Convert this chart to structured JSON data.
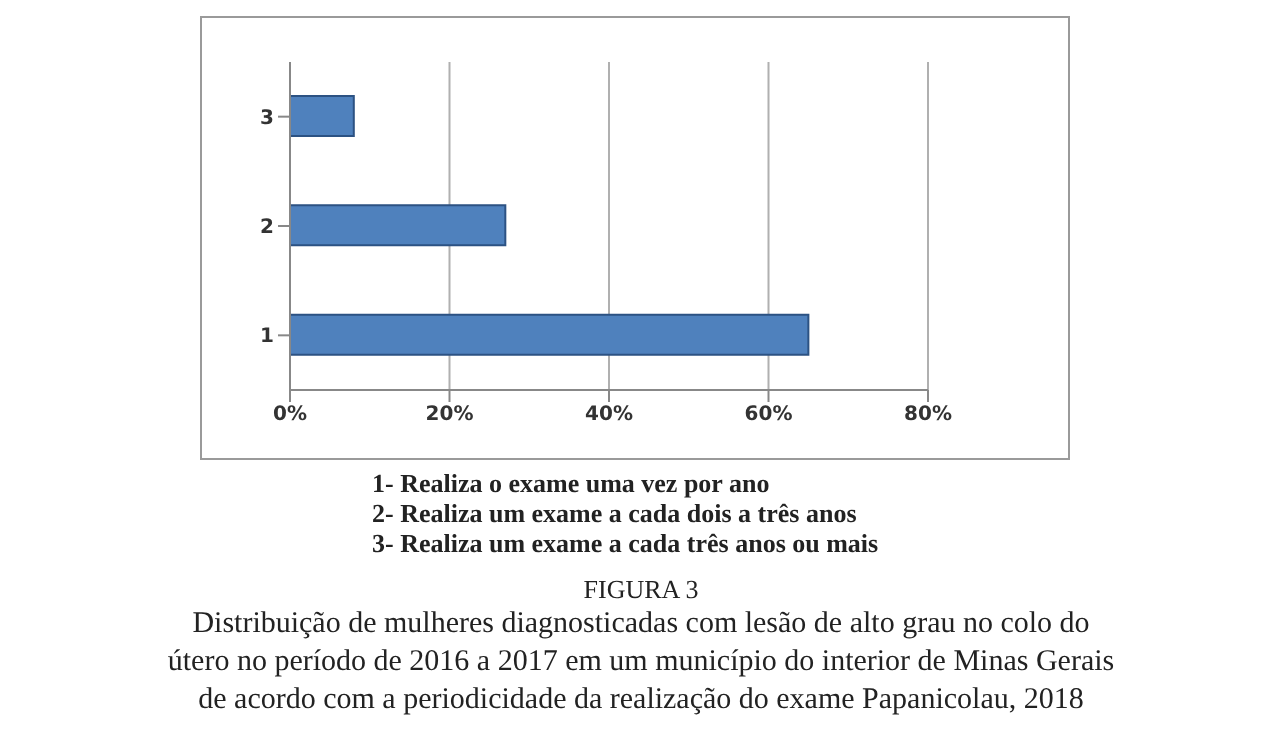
{
  "chart_data": {
    "type": "bar",
    "orientation": "horizontal",
    "title": "FIGURA 3",
    "subtitle": "Distribuição de mulheres diagnosticadas com lesão de alto grau no colo do útero no período de 2016 a 2017 em um município do interior de Minas Gerais de acordo com a periodicidade da realização do exame Papanicolau, 2018",
    "categories": [
      "3",
      "2",
      "1"
    ],
    "values": [
      8,
      27,
      65
    ],
    "color": "#4f81bd",
    "xlim": [
      0,
      80
    ],
    "xticks": [
      {
        "value": 0,
        "label": "0%"
      },
      {
        "value": 20,
        "label": "20%"
      },
      {
        "value": 40,
        "label": "40%"
      },
      {
        "value": 60,
        "label": "60%"
      },
      {
        "value": 80,
        "label": "80%"
      }
    ],
    "grid": "x",
    "annotations": [
      "1- Realiza o exame uma vez por ano",
      "2- Realiza um exame a cada dois a três anos",
      "3- Realiza um exame a cada três anos ou mais"
    ]
  }
}
